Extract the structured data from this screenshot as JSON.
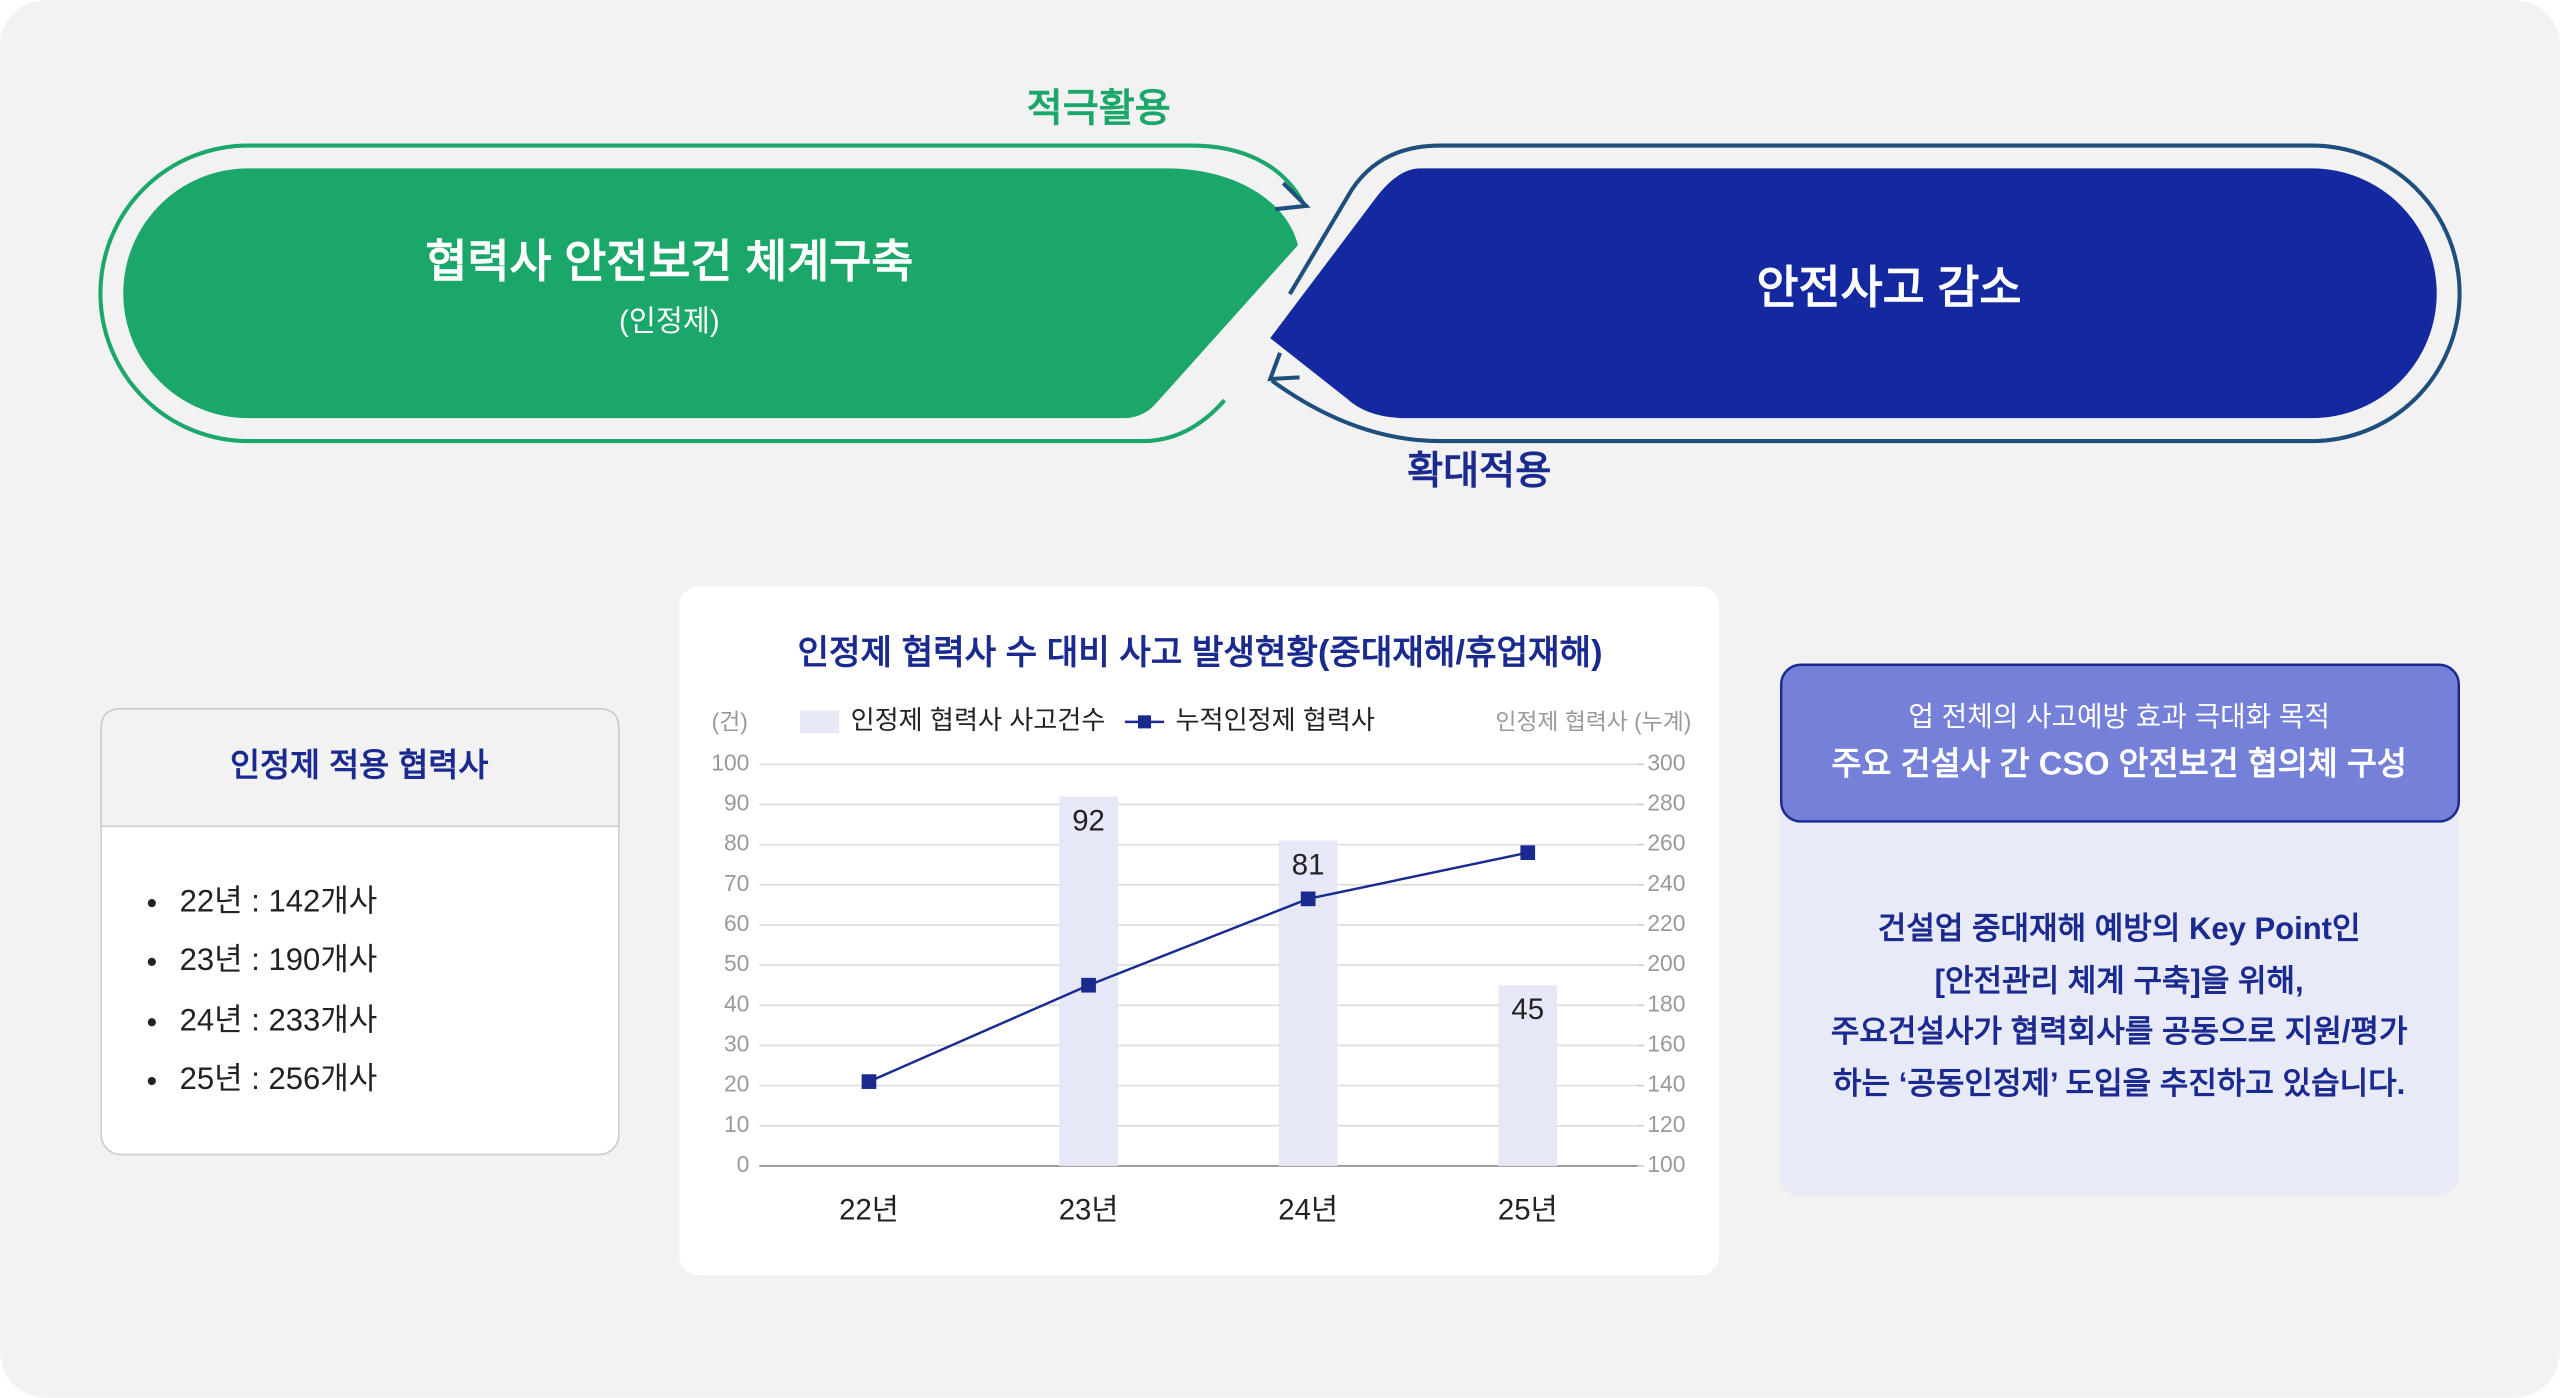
{
  "diagram": {
    "top_label": "적극활용",
    "bottom_label": "확대적용",
    "left_title": "협력사 안전보건 체계구축",
    "left_subtitle": "(인정제)",
    "right_title": "안전사고 감소"
  },
  "left_box": {
    "title": "인정제 적용 협력사",
    "items": [
      "22년 : 142개사",
      "23년 : 190개사",
      "24년 : 233개사",
      "25년 : 256개사"
    ]
  },
  "chart_data": {
    "type": "bar",
    "title": "인정제 협력사 수 대비 사고 발생현황(중대재해/휴업재해)",
    "y_label": "(건)",
    "y2_label": "인정제 협력사 (누계)",
    "categories": [
      "22년",
      "23년",
      "24년",
      "25년"
    ],
    "series": [
      {
        "name": "인정제 협력사 사고건수",
        "type": "bar",
        "color": "#e6e8f7",
        "values": [
          null,
          92,
          81,
          45
        ]
      },
      {
        "name": "누적인정제 협력사",
        "type": "line",
        "axis": "y2",
        "color": "#1a2a8f",
        "values": [
          142,
          190,
          233,
          256
        ]
      }
    ],
    "ylim": [
      0,
      100
    ],
    "yticks": [
      0,
      10,
      20,
      30,
      40,
      50,
      60,
      70,
      80,
      90,
      100
    ],
    "y2lim": [
      100,
      300
    ],
    "y2ticks": [
      100,
      120,
      140,
      160,
      180,
      200,
      220,
      240,
      260,
      280,
      300
    ],
    "grid": true,
    "legend": "top"
  },
  "right_box": {
    "header_sub": "업 전체의 사고예방 효과 극대화 목적",
    "header_title": "주요 건설사 간 CSO 안전보건 협의체 구성",
    "body": [
      "건설업 중대재해 예방의 Key Point인",
      "[안전관리 체계 구축]을 위해,",
      "주요건설사가 협력회사를 공동으로 지원/평가",
      "하는 ‘공동인정제’ 도입을 추진하고 있습니다."
    ]
  }
}
